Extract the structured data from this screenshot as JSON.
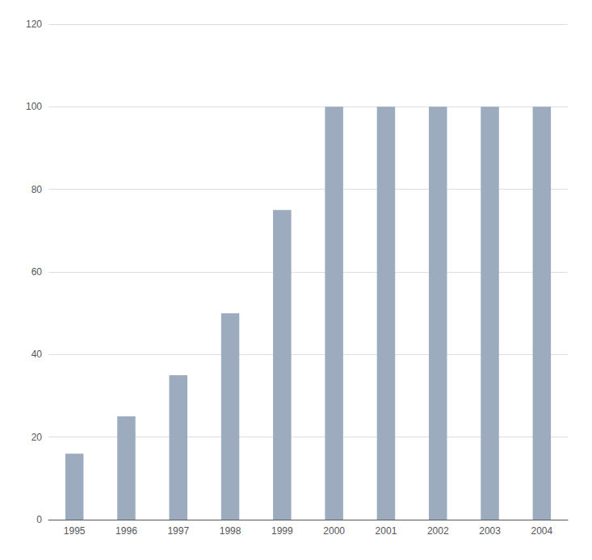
{
  "chart_data": {
    "type": "bar",
    "categories": [
      "1995",
      "1996",
      "1997",
      "1998",
      "1999",
      "2000",
      "2001",
      "2002",
      "2003",
      "2004"
    ],
    "values": [
      16,
      25,
      35,
      50,
      75,
      100,
      100,
      100,
      100,
      100
    ],
    "color": "#9dabbe",
    "ylim": [
      0,
      120
    ],
    "yticks": [
      0,
      20,
      40,
      60,
      80,
      100,
      120
    ],
    "grid": true
  }
}
